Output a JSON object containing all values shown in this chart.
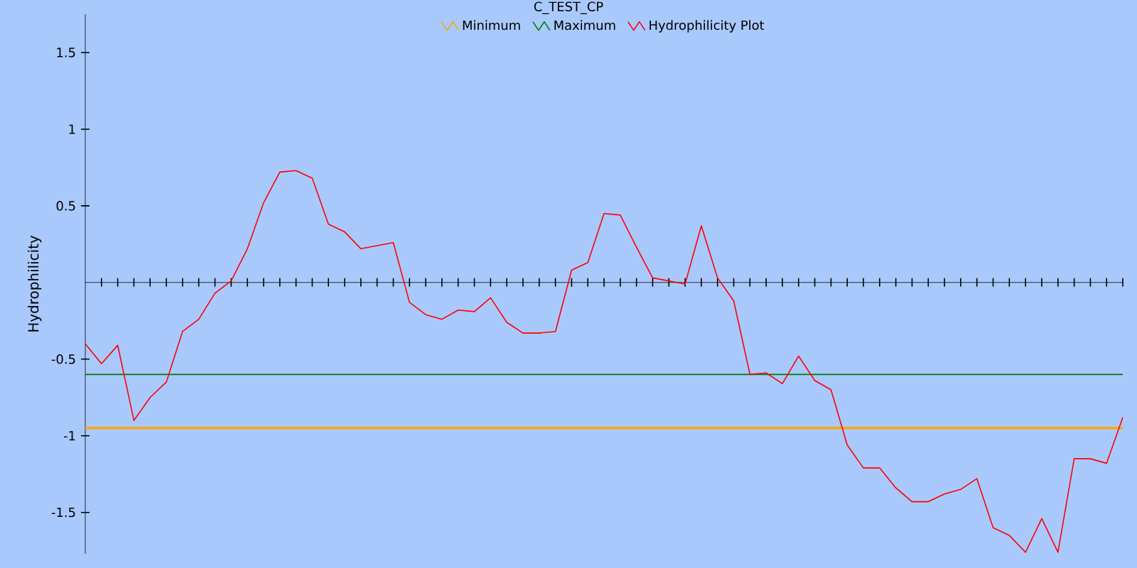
{
  "chart_data": {
    "type": "line",
    "title": "C_TEST_CP",
    "ylabel": "Hydrophilicity",
    "categories": [
      null,
      null,
      null,
      null,
      null,
      null,
      null,
      null,
      null,
      null,
      null,
      null,
      null,
      null,
      null,
      null,
      null,
      null,
      null,
      null,
      null,
      null,
      null,
      null,
      null,
      null,
      null,
      null,
      null,
      null,
      null,
      null,
      null,
      null,
      null,
      null,
      null,
      null,
      null,
      null,
      null,
      null,
      null,
      null,
      null,
      null,
      null,
      null,
      null,
      null,
      null,
      null,
      null,
      null,
      null,
      null,
      null,
      null,
      null,
      null,
      null,
      null,
      null,
      null,
      null
    ],
    "series": [
      {
        "name": "Minimum",
        "color": "#ffa500",
        "values": [
          -0.95,
          -0.95,
          -0.95,
          -0.95,
          -0.95,
          -0.95,
          -0.95,
          -0.95,
          -0.95,
          -0.95,
          -0.95,
          -0.95,
          -0.95,
          -0.95,
          -0.95,
          -0.95,
          -0.95,
          -0.95,
          -0.95,
          -0.95,
          -0.95,
          -0.95,
          -0.95,
          -0.95,
          -0.95,
          -0.95,
          -0.95,
          -0.95,
          -0.95,
          -0.95,
          -0.95,
          -0.95,
          -0.95,
          -0.95,
          -0.95,
          -0.95,
          -0.95,
          -0.95,
          -0.95,
          -0.95,
          -0.95,
          -0.95,
          -0.95,
          -0.95,
          -0.95,
          -0.95,
          -0.95,
          -0.95,
          -0.95,
          -0.95,
          -0.95,
          -0.95,
          -0.95,
          -0.95,
          -0.95,
          -0.95,
          -0.95,
          -0.95,
          -0.95,
          -0.95,
          -0.95,
          -0.95,
          -0.95,
          -0.95,
          -0.95
        ]
      },
      {
        "name": "Maximum",
        "color": "#007a00",
        "values": [
          -0.6,
          -0.6,
          -0.6,
          -0.6,
          -0.6,
          -0.6,
          -0.6,
          -0.6,
          -0.6,
          -0.6,
          -0.6,
          -0.6,
          -0.6,
          -0.6,
          -0.6,
          -0.6,
          -0.6,
          -0.6,
          -0.6,
          -0.6,
          -0.6,
          -0.6,
          -0.6,
          -0.6,
          -0.6,
          -0.6,
          -0.6,
          -0.6,
          -0.6,
          -0.6,
          -0.6,
          -0.6,
          -0.6,
          -0.6,
          -0.6,
          -0.6,
          -0.6,
          -0.6,
          -0.6,
          -0.6,
          -0.6,
          -0.6,
          -0.6,
          -0.6,
          -0.6,
          -0.6,
          -0.6,
          -0.6,
          -0.6,
          -0.6,
          -0.6,
          -0.6,
          -0.6,
          -0.6,
          -0.6,
          -0.6,
          -0.6,
          -0.6,
          -0.6,
          -0.6,
          -0.6,
          -0.6,
          -0.6,
          -0.6,
          -0.6
        ]
      },
      {
        "name": "Hydrophilicity Plot",
        "color": "#ff0000",
        "values": [
          -0.4,
          -0.53,
          -0.41,
          -0.9,
          -0.75,
          -0.65,
          -0.32,
          -0.24,
          -0.07,
          0.01,
          0.22,
          0.52,
          0.72,
          0.73,
          0.68,
          0.38,
          0.33,
          0.22,
          0.24,
          0.26,
          -0.13,
          -0.21,
          -0.24,
          -0.18,
          -0.19,
          -0.1,
          -0.26,
          -0.33,
          -0.33,
          -0.32,
          0.08,
          0.13,
          0.45,
          0.44,
          0.23,
          0.03,
          0.01,
          -0.01,
          0.37,
          0.03,
          -0.12,
          -0.6,
          -0.59,
          -0.66,
          -0.48,
          -0.64,
          -0.7,
          -1.06,
          -1.21,
          -1.21,
          -1.34,
          -1.43,
          -1.43,
          -1.38,
          -1.35,
          -1.28,
          -1.6,
          -1.65,
          -1.76,
          -1.54,
          -1.76,
          -1.15,
          -1.15,
          -1.18,
          -0.88
        ]
      }
    ],
    "ylim": [
      -1.77,
      1.75
    ],
    "yticks": [
      -1.5,
      -1,
      -0.5,
      0.5,
      1,
      1.5
    ],
    "grid": false,
    "legend": "top",
    "marker": "none",
    "line_style": "solid"
  }
}
